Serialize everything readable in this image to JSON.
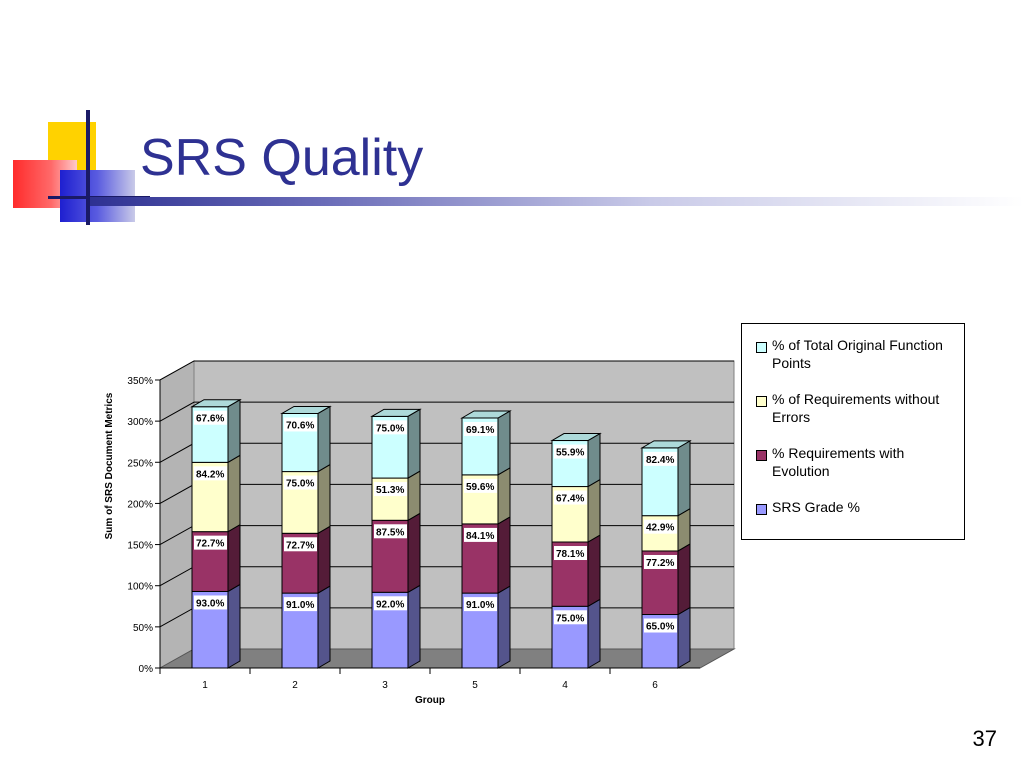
{
  "slide": {
    "title": "SRS Quality",
    "page_number": "37"
  },
  "colors": {
    "title": "#2e3192",
    "srs_grade": "#9999ff",
    "requirements_evolution": "#993366",
    "requirements_without_errors": "#ffffcc",
    "original_function_points": "#ccffff"
  },
  "chart_data": {
    "type": "bar",
    "stacked": true,
    "three_d": true,
    "title": "",
    "xlabel": "Group",
    "ylabel": "Sum of SRS Document Metrics",
    "categories": [
      "1",
      "2",
      "3",
      "5",
      "4",
      "6"
    ],
    "ylim": [
      0,
      350
    ],
    "yticks": [
      "0%",
      "50%",
      "100%",
      "150%",
      "200%",
      "250%",
      "300%",
      "350%"
    ],
    "grid": true,
    "legend_position": "right",
    "series": [
      {
        "name": "SRS Grade %",
        "color": "#9999ff",
        "values": [
          93.0,
          91.0,
          92.0,
          91.0,
          75.0,
          65.0
        ],
        "labels": [
          "93.0%",
          "91.0%",
          "92.0%",
          "91.0%",
          "75.0%",
          "65.0%"
        ]
      },
      {
        "name": "% Requirements with Evolution",
        "color": "#993366",
        "values": [
          72.7,
          72.7,
          87.5,
          84.1,
          78.1,
          77.2
        ],
        "labels": [
          "72.7%",
          "72.7%",
          "87.5%",
          "84.1%",
          "78.1%",
          "77.2%"
        ]
      },
      {
        "name": "% of Requirements without Errors",
        "color": "#ffffcc",
        "values": [
          84.2,
          75.0,
          51.3,
          59.6,
          67.4,
          42.9
        ],
        "labels": [
          "84.2%",
          "75.0%",
          "51.3%",
          "59.6%",
          "67.4%",
          "42.9%"
        ]
      },
      {
        "name": "% of Total Original Function Points",
        "color": "#ccffff",
        "values": [
          67.6,
          70.6,
          75.0,
          69.1,
          55.9,
          82.4
        ],
        "labels": [
          "67.6%",
          "70.6%",
          "75.0%",
          "69.1%",
          "55.9%",
          "82.4%"
        ]
      }
    ]
  },
  "legend": {
    "items": [
      {
        "label": "% of Total Original Function Points",
        "color": "#ccffff"
      },
      {
        "label": "% of Requirements without Errors",
        "color": "#ffffcc"
      },
      {
        "label": "% Requirements with Evolution",
        "color": "#993366"
      },
      {
        "label": "SRS Grade %",
        "color": "#9999ff"
      }
    ]
  }
}
